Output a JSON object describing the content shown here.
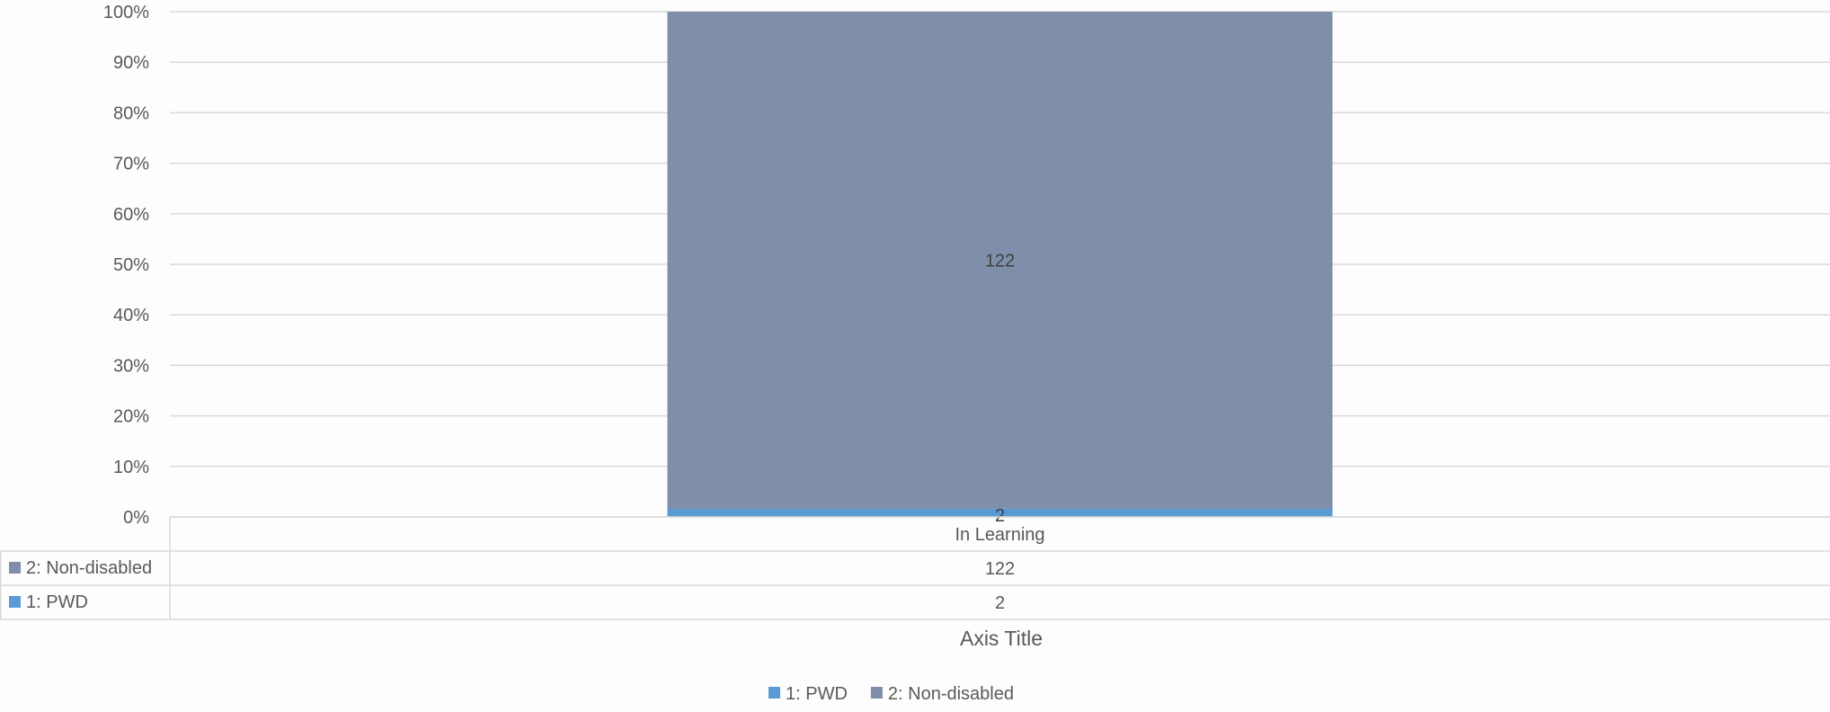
{
  "chart_data": {
    "type": "bar",
    "stacking": "percent",
    "categories": [
      "In Learning"
    ],
    "series": [
      {
        "name": "1: PWD",
        "values": [
          2
        ],
        "color": "#5b9bd5"
      },
      {
        "name": "2: Non-disabled",
        "values": [
          122
        ],
        "color": "#7f8fa9"
      }
    ],
    "y_ticks": [
      "0%",
      "10%",
      "20%",
      "30%",
      "40%",
      "50%",
      "60%",
      "70%",
      "80%",
      "90%",
      "100%"
    ],
    "ylim": [
      0,
      100
    ],
    "xlabel": "Axis Title",
    "data_labels": true,
    "data_table": true,
    "legend_position": "bottom",
    "grid": true
  }
}
